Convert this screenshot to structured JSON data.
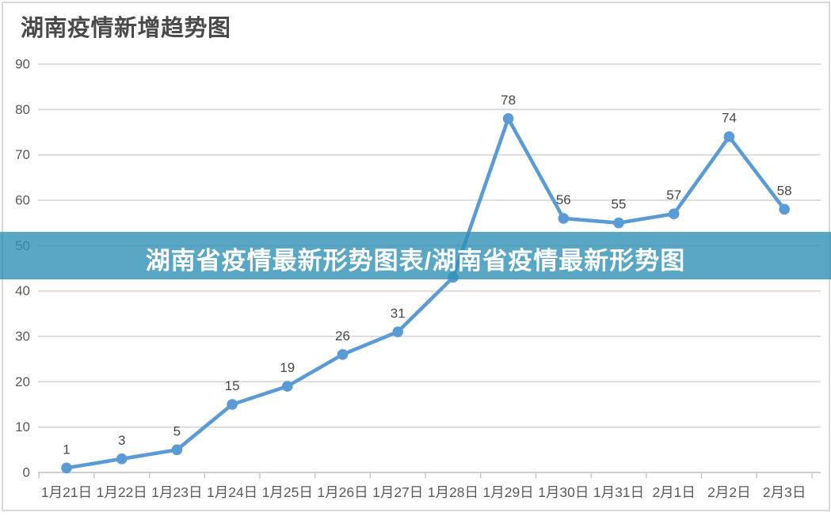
{
  "chart_data": {
    "type": "line",
    "title": "湖南疫情新增趋势图",
    "categories": [
      "1月21日",
      "1月22日",
      "1月23日",
      "1月24日",
      "1月25日",
      "1月26日",
      "1月27日",
      "1月28日",
      "1月29日",
      "1月30日",
      "1月31日",
      "2月1日",
      "2月2日",
      "2月3日"
    ],
    "values": [
      1,
      3,
      5,
      15,
      19,
      26,
      31,
      43,
      78,
      56,
      55,
      57,
      74,
      58
    ],
    "data_labels": [
      "1",
      "3",
      "5",
      "15",
      "19",
      "26",
      "31",
      "",
      "78",
      "56",
      "55",
      "57",
      "74",
      "58"
    ],
    "xlabel": "",
    "ylabel": "",
    "ylim": [
      0,
      90
    ],
    "ytick_step": 10,
    "ytick_labels": [
      "0",
      "10",
      "20",
      "30",
      "40",
      "50",
      "60",
      "70",
      "80",
      "90"
    ],
    "grid": "horizontal",
    "legend": "none",
    "colors": {
      "line": "#5B9BD5",
      "marker": "#5B9BD5",
      "grid": "#d9d9d9",
      "axis": "#c6c9cc",
      "axis_label": "#595959",
      "data_label": "#474747",
      "title": "#4a4a4a",
      "frame": "#d8d8d8"
    }
  },
  "banner": {
    "text": "湖南省疫情最新形势图表/湖南省疫情最新形势图",
    "bg": "#2f91b7",
    "bg_opacity": 0.8,
    "text_color": "#ffffff"
  }
}
